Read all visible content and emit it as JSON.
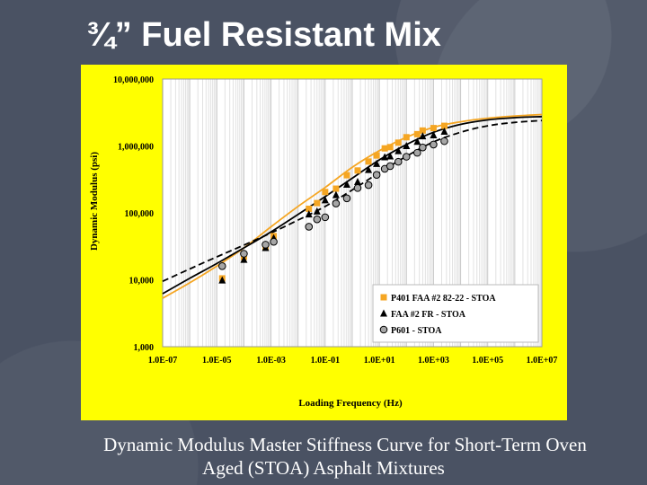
{
  "slide": {
    "title": "¾” Fuel Resistant Mix",
    "caption_line1": "Dynamic Modulus Master Stiffness Curve for Short-Term Oven",
    "caption_line2": "Aged (STOA) Asphalt Mixtures"
  },
  "colors": {
    "background": "#4a5263",
    "panel": "#ffff00",
    "series_orange": "#f5a623",
    "series_black": "#000000",
    "series_gray": "#a6a6a6"
  },
  "chart_data": {
    "type": "scatter",
    "title": "",
    "xlabel": "Loading Frequency (Hz)",
    "ylabel": "Dynamic Modulus (psi)",
    "x_scale": "log",
    "y_scale": "log",
    "xlim": [
      1e-07,
      10000000.0
    ],
    "ylim": [
      1000,
      10000000
    ],
    "x_tick_labels": [
      "1.0E-07",
      "1.0E-05",
      "1.0E-03",
      "1.0E-01",
      "1.0E+01",
      "1.0E+03",
      "1.0E+05",
      "1.0E+07"
    ],
    "y_tick_labels": [
      "1,000",
      "10,000",
      "100,000",
      "1,000,000",
      "10,000,000"
    ],
    "grid": "vertical minor gridlines",
    "legend_position": "bottom-right",
    "series": [
      {
        "name": "P401 FAA #2 82-22 - STOA",
        "marker": "square",
        "color": "#f5a623",
        "curve_style": "solid",
        "points": [
          [
            1.58e-05,
            10500
          ],
          [
            0.0001,
            22000
          ],
          [
            0.00063,
            30000
          ],
          [
            0.00126,
            45000
          ],
          [
            0.0251,
            115000
          ],
          [
            0.0501,
            140000
          ],
          [
            0.1,
            205000
          ],
          [
            0.251,
            230000
          ],
          [
            0.631,
            365000
          ],
          [
            1.58,
            430000
          ],
          [
            3.98,
            585000
          ],
          [
            7.94,
            720000
          ],
          [
            15.8,
            920000
          ],
          [
            25.1,
            960000
          ],
          [
            50.1,
            1120000
          ],
          [
            100,
            1350000
          ],
          [
            251,
            1500000
          ],
          [
            398,
            1700000
          ],
          [
            1000,
            1850000
          ],
          [
            2510,
            2000000
          ]
        ],
        "curve": [
          [
            1e-07,
            5300
          ],
          [
            1e-06,
            9000
          ],
          [
            1e-05,
            16000
          ],
          [
            0.0001,
            30000
          ],
          [
            0.001,
            62000
          ],
          [
            0.01,
            125000
          ],
          [
            0.1,
            240000
          ],
          [
            1,
            480000
          ],
          [
            10,
            850000
          ],
          [
            100,
            1350000
          ],
          [
            1000,
            1900000
          ],
          [
            10000,
            2300000
          ],
          [
            100000,
            2600000
          ],
          [
            1000000,
            2800000
          ],
          [
            10000000,
            2950000
          ]
        ]
      },
      {
        "name": "FAA #2 FR - STOA",
        "marker": "triangle",
        "color": "#000000",
        "curve_style": "solid",
        "points": [
          [
            1.58e-05,
            9800
          ],
          [
            0.0001,
            20000
          ],
          [
            0.00063,
            30000
          ],
          [
            0.00126,
            42000
          ],
          [
            0.0251,
            95000
          ],
          [
            0.0501,
            105000
          ],
          [
            0.1,
            155000
          ],
          [
            0.251,
            185000
          ],
          [
            0.631,
            265000
          ],
          [
            1.58,
            290000
          ],
          [
            3.98,
            440000
          ],
          [
            7.94,
            540000
          ],
          [
            15.8,
            680000
          ],
          [
            25.1,
            700000
          ],
          [
            50.1,
            840000
          ],
          [
            100,
            1000000
          ],
          [
            251,
            1160000
          ],
          [
            398,
            1400000
          ],
          [
            1000,
            1450000
          ],
          [
            2510,
            1640000
          ]
        ],
        "curve": [
          [
            1e-07,
            6200
          ],
          [
            1e-06,
            10500
          ],
          [
            1e-05,
            17500
          ],
          [
            0.0001,
            30000
          ],
          [
            0.001,
            52000
          ],
          [
            0.01,
            95000
          ],
          [
            0.1,
            175000
          ],
          [
            1,
            330000
          ],
          [
            10,
            620000
          ],
          [
            100,
            1050000
          ],
          [
            1000,
            1600000
          ],
          [
            10000,
            2100000
          ],
          [
            100000,
            2450000
          ],
          [
            1000000,
            2650000
          ],
          [
            10000000,
            2750000
          ]
        ]
      },
      {
        "name": "P601 - STOA",
        "marker": "circle",
        "color": "#a6a6a6",
        "curve_style": "dashed",
        "points": [
          [
            1.58e-05,
            16000
          ],
          [
            0.0001,
            24500
          ],
          [
            0.00063,
            33500
          ],
          [
            0.00126,
            37000
          ],
          [
            0.0251,
            62000
          ],
          [
            0.0501,
            80000
          ],
          [
            0.1,
            86000
          ],
          [
            0.251,
            138000
          ],
          [
            0.631,
            165000
          ],
          [
            1.58,
            235000
          ],
          [
            3.98,
            260000
          ],
          [
            7.94,
            370000
          ],
          [
            15.8,
            455000
          ],
          [
            25.1,
            500000
          ],
          [
            50.1,
            580000
          ],
          [
            100,
            690000
          ],
          [
            251,
            790000
          ],
          [
            398,
            950000
          ],
          [
            1000,
            1050000
          ],
          [
            2510,
            1180000
          ]
        ],
        "curve": [
          [
            1e-07,
            9500
          ],
          [
            1e-06,
            14500
          ],
          [
            1e-05,
            22000
          ],
          [
            0.0001,
            33000
          ],
          [
            0.001,
            50000
          ],
          [
            0.01,
            78000
          ],
          [
            0.1,
            125000
          ],
          [
            1,
            220000
          ],
          [
            10,
            400000
          ],
          [
            100,
            700000
          ],
          [
            1000,
            1150000
          ],
          [
            10000,
            1600000
          ],
          [
            100000,
            2000000
          ],
          [
            1000000,
            2250000
          ],
          [
            10000000,
            2400000
          ]
        ]
      }
    ]
  }
}
